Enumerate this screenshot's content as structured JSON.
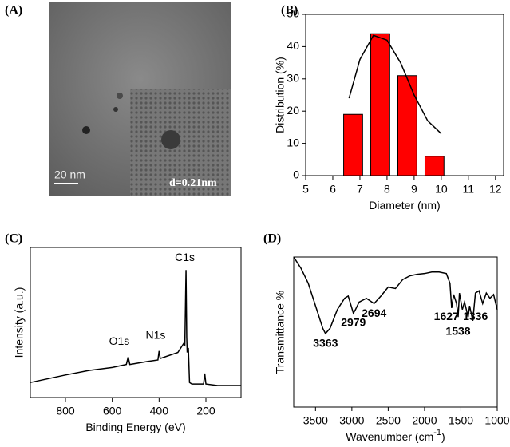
{
  "panel_a": {
    "label": "(A)",
    "scale_bar": "20 nm",
    "inset_text": "d=0.21nm"
  },
  "chart_data": [
    {
      "type": "bar",
      "label": "(B)",
      "xlabel": "Diameter (nm)",
      "ylabel": "Distribution (%)",
      "x": [
        6.75,
        7.75,
        8.75,
        9.75
      ],
      "values": [
        19,
        44,
        31,
        6
      ],
      "color": "#ff0000",
      "fit": {
        "color": "#000000",
        "x": [
          6.6,
          7.0,
          7.5,
          8.0,
          8.5,
          9.0,
          9.5,
          10.0
        ],
        "values": [
          24,
          36,
          43.5,
          42,
          35,
          25,
          17,
          13
        ]
      },
      "xlim": [
        5,
        12.3
      ],
      "xticks": [
        5,
        6,
        7,
        8,
        9,
        10,
        11,
        12
      ],
      "ylim": [
        0,
        50
      ],
      "yticks": [
        0,
        10,
        20,
        30,
        40,
        50
      ]
    },
    {
      "type": "line",
      "label": "(C)",
      "xlabel": "Binding Energy (eV)",
      "ylabel": "Intensity (a.u.)",
      "color": "#000000",
      "x": [
        950,
        800,
        700,
        600,
        540,
        532,
        525,
        450,
        405,
        400,
        395,
        320,
        295,
        290,
        285,
        282,
        280,
        275,
        270,
        260,
        210,
        205,
        200,
        150,
        50
      ],
      "values": [
        10,
        15,
        18,
        20,
        22,
        27,
        22,
        24,
        25,
        31,
        26,
        30,
        36,
        35,
        85,
        40,
        30,
        33,
        10,
        9,
        9,
        16,
        9,
        8,
        8
      ],
      "xlim": [
        950,
        50
      ],
      "xticks": [
        800,
        600,
        400,
        200
      ],
      "ylim": [
        0,
        100
      ],
      "annotations": [
        {
          "text": "C1s",
          "x": 290,
          "y": 93
        },
        {
          "text": "N1s",
          "x": 415,
          "y": 41
        },
        {
          "text": "O1s",
          "x": 570,
          "y": 37
        }
      ]
    },
    {
      "type": "line",
      "label": "(D)",
      "xlabel": "Wavenumber (cm",
      "xlabel_sup": "-1",
      "xlabel_end": ")",
      "ylabel": "Transmittance %",
      "color": "#000000",
      "x": [
        3800,
        3700,
        3600,
        3500,
        3400,
        3363,
        3300,
        3200,
        3100,
        3050,
        2979,
        2950,
        2900,
        2800,
        2694,
        2600,
        2500,
        2400,
        2300,
        2200,
        2100,
        2000,
        1900,
        1800,
        1700,
        1650,
        1627,
        1600,
        1560,
        1538,
        1520,
        1480,
        1450,
        1400,
        1380,
        1336,
        1300,
        1250,
        1200,
        1150,
        1100,
        1050,
        1000
      ],
      "values": [
        100,
        92.5,
        82.5,
        67.5,
        52.5,
        49,
        52.5,
        65,
        72.5,
        74,
        62.5,
        65,
        70,
        72.5,
        69,
        74,
        80,
        79,
        85,
        87.5,
        88.5,
        89,
        90,
        90,
        89,
        82.5,
        66,
        75,
        69,
        60,
        76,
        65,
        70,
        60,
        67.5,
        57.5,
        76,
        77.5,
        69,
        76,
        72.5,
        75,
        65
      ],
      "xlim": [
        3800,
        1000
      ],
      "xticks": [
        3500,
        3000,
        2500,
        2000,
        1500,
        1000
      ],
      "ylim": [
        0,
        100
      ],
      "annotations": [
        {
          "text": "3363",
          "x": 3363,
          "y": 42
        },
        {
          "text": "2979",
          "x": 2979,
          "y": 56
        },
        {
          "text": "2694",
          "x": 2694,
          "y": 62
        },
        {
          "text": "1627",
          "x": 1700,
          "y": 60
        },
        {
          "text": "1538",
          "x": 1538,
          "y": 50
        },
        {
          "text": "1336",
          "x": 1300,
          "y": 60
        }
      ]
    }
  ]
}
